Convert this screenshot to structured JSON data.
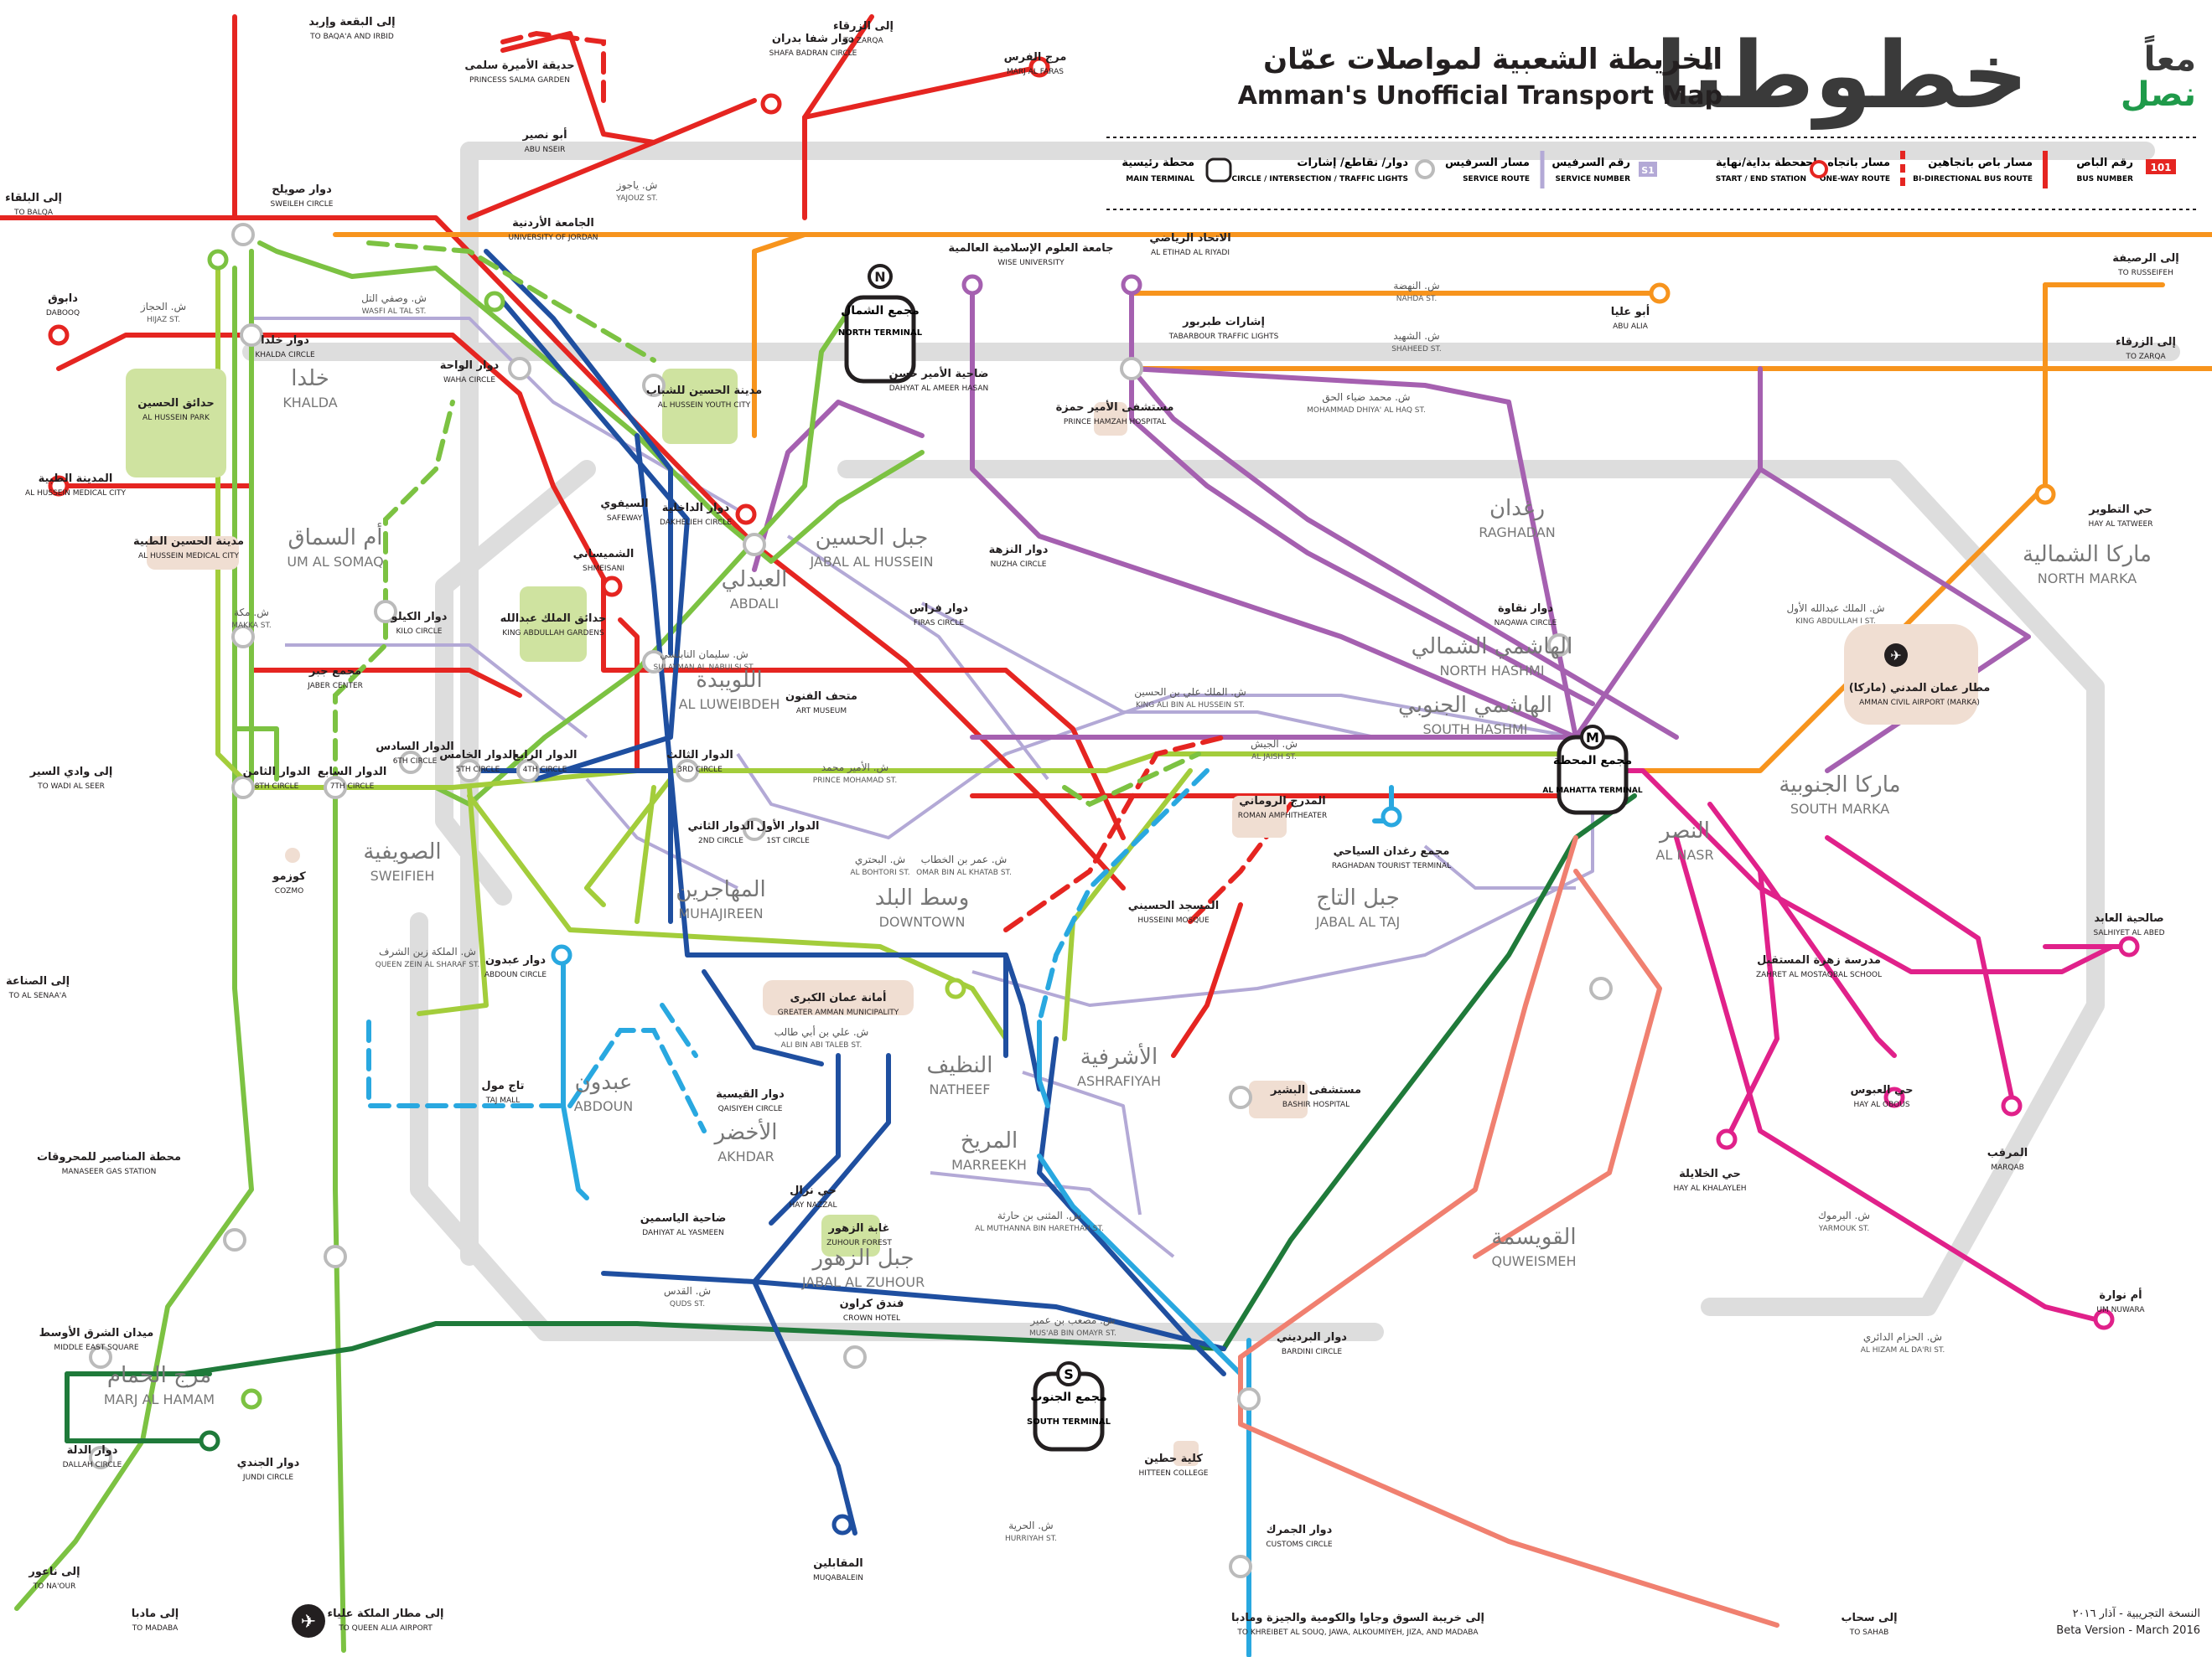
{
  "header": {
    "logo_ar_1": "معاً",
    "logo_ar_2": "نصل",
    "logo_main": "خطوطنا",
    "title_ar": "الخريطة الشعبية لمواصلات عمّان",
    "title_en": "Amman's Unofficial Transport Map"
  },
  "legend": [
    {
      "ar": "رقم الباص",
      "en": "BUS NUMBER",
      "sample": "101"
    },
    {
      "ar": "مسار باص باتجاهين",
      "en": "BI-DIRECTIONAL BUS ROUTE"
    },
    {
      "ar": "مسار باتجاه واحد",
      "en": "ONE-WAY ROUTE"
    },
    {
      "ar": "محطة بداية/نهاية",
      "en": "START / END STATION"
    },
    {
      "ar": "رقم السرفيس",
      "en": "SERVICE NUMBER",
      "sample": "S1"
    },
    {
      "ar": "مسار السرفيس",
      "en": "SERVICE ROUTE"
    },
    {
      "ar": "دوار/ تقاطع/ إشارات",
      "en": "CIRCLE / INTERSECTION / TRAFFIC LIGHTS"
    },
    {
      "ar": "محطة رئيسية",
      "en": "MAIN TERMINAL"
    }
  ],
  "colors": {
    "red": "#e52521",
    "orange": "#f7941d",
    "green": "#7cc242",
    "lime": "#a3cd3b",
    "darkgreen": "#1f7a3a",
    "blue": "#1f4fa0",
    "lightblue": "#29a8e0",
    "purple": "#a560b0",
    "magenta": "#e0218a",
    "salmon": "#f08070",
    "grey": "#dddddd",
    "lilac": "#b3a9d6"
  },
  "areas": [
    {
      "ar": "خلدا",
      "en": "KHALDA"
    },
    {
      "ar": "أم السماق",
      "en": "UM AL SOMAQ"
    },
    {
      "ar": "الصويفية",
      "en": "SWEIFIEH"
    },
    {
      "ar": "عبدون",
      "en": "ABDOUN"
    },
    {
      "ar": "مرج الحمام",
      "en": "MARJ AL HAMAM"
    },
    {
      "ar": "العبدلي",
      "en": "ABDALI"
    },
    {
      "ar": "اللويبدة",
      "en": "AL LUWEIBDEH"
    },
    {
      "ar": "المهاجرين",
      "en": "MUHAJIREEN"
    },
    {
      "ar": "وسط البلد",
      "en": "DOWNTOWN"
    },
    {
      "ar": "الأخضر",
      "en": "AKHDAR"
    },
    {
      "ar": "النظيف",
      "en": "NATHEEF"
    },
    {
      "ar": "المريخ",
      "en": "MARREEKH"
    },
    {
      "ar": "الأشرفية",
      "en": "ASHRAFIYAH"
    },
    {
      "ar": "جبل الزهور",
      "en": "JABAL AL ZUHOUR"
    },
    {
      "ar": "جبل التاج",
      "en": "JABAL AL TAJ"
    },
    {
      "ar": "رغدان",
      "en": "RAGHADAN"
    },
    {
      "ar": "الهاشمي الشمالي",
      "en": "NORTH HASHMI"
    },
    {
      "ar": "الهاشمي الجنوبي",
      "en": "SOUTH HASHMI"
    },
    {
      "ar": "النصر",
      "en": "AL NASR"
    },
    {
      "ar": "ماركا الشمالية",
      "en": "NORTH MARKA"
    },
    {
      "ar": "ماركا الجنوبية",
      "en": "SOUTH MARKA"
    },
    {
      "ar": "القويسمة",
      "en": "QUWEISMEH"
    },
    {
      "ar": "جبل الحسين",
      "en": "JABAL AL HUSSEIN"
    }
  ],
  "places": [
    {
      "ar": "إلى البقعة وإربد",
      "en": "TO BAQA'A AND IRBID"
    },
    {
      "ar": "إلى الزرقاء",
      "en": "TO ZARQA"
    },
    {
      "ar": "مرج الفرس",
      "en": "MARJ AL FARAS"
    },
    {
      "ar": "حديقة الأميرة سلمى",
      "en": "PRINCESS SALMA GARDEN"
    },
    {
      "ar": "أبو نصير",
      "en": "ABU NSEIR"
    },
    {
      "ar": "دوار شفا بدران",
      "en": "SHAFA BADRAN CIRCLE"
    },
    {
      "ar": "إلى البلقاء",
      "en": "TO BALQA"
    },
    {
      "ar": "دوار صويلح",
      "en": "SWEILEH CIRCLE"
    },
    {
      "ar": "الجامعة الأردنية",
      "en": "UNIVERSITY OF JORDAN"
    },
    {
      "ar": "جامعة العلوم الإسلامية العالمية",
      "en": "WISE UNIVERSITY"
    },
    {
      "ar": "الاتحاد الرياضي",
      "en": "AL ETIHAD AL RIYADI"
    },
    {
      "ar": "إلى الرصيفة",
      "en": "TO RUSSEIFEH"
    },
    {
      "ar": "دابوق",
      "en": "DABOOQ"
    },
    {
      "ar": "دوار خلدا",
      "en": "KHALDA CIRCLE"
    },
    {
      "ar": "أبو عليا",
      "en": "ABU ALIA"
    },
    {
      "ar": "إشارات طبربور",
      "en": "TABARBOUR TRAFFIC LIGHTS"
    },
    {
      "ar": "إلى الزرقاء",
      "en": "TO ZARQA"
    },
    {
      "ar": "حدائق الحسين",
      "en": "AL HUSSEIN PARK"
    },
    {
      "ar": "دوار الواحة",
      "en": "WAHA CIRCLE"
    },
    {
      "ar": "مدينة الحسين للشباب",
      "en": "AL HUSSEIN YOUTH CITY"
    },
    {
      "ar": "ضاحية الأمير حسن",
      "en": "DAHYAT AL AMEER HASAN"
    },
    {
      "ar": "مستشفى الأمير حمزة",
      "en": "PRINCE HAMZAH HOSPITAL"
    },
    {
      "ar": "المدينة الطبية",
      "en": "AL HUSSEIN MEDICAL CITY"
    },
    {
      "ar": "مدينة الحسين الطبية",
      "en": "AL HUSSEIN MEDICAL CITY"
    },
    {
      "ar": "السيفوي",
      "en": "SAFEWAY"
    },
    {
      "ar": "دوار الداخلية",
      "en": "DAKHELIEH CIRCLE"
    },
    {
      "ar": "دوار النزهة",
      "en": "NUZHA CIRCLE"
    },
    {
      "ar": "حي التطوير",
      "en": "HAY AL TATWEER"
    },
    {
      "ar": "دوار الكيلو",
      "en": "KILO CIRCLE"
    },
    {
      "ar": "الشميساني",
      "en": "SHMEISANI"
    },
    {
      "ar": "حدائق الملك عبدالله",
      "en": "KING ABDULLAH GARDENS"
    },
    {
      "ar": "دوار فراس",
      "en": "FIRAS CIRCLE"
    },
    {
      "ar": "دوار نقاوة",
      "en": "NAQAWA CIRCLE"
    },
    {
      "ar": "مجمع جبر",
      "en": "JABER CENTER"
    },
    {
      "ar": "متحف الفنون",
      "en": "ART MUSEUM"
    },
    {
      "ar": "مطار عمان المدني (ماركا)",
      "en": "AMMAN CIVIL AIRPORT (MARKA)"
    },
    {
      "ar": "إلى وادي السير",
      "en": "TO WADI AL SEER"
    },
    {
      "ar": "الدوار الثامن",
      "en": "8TH CIRCLE"
    },
    {
      "ar": "الدوار السابع",
      "en": "7TH CIRCLE"
    },
    {
      "ar": "الدوار السادس",
      "en": "6TH CIRCLE"
    },
    {
      "ar": "الدوار الخامس",
      "en": "5TH CIRCLE"
    },
    {
      "ar": "الدوار الرابع",
      "en": "4TH CIRCLE"
    },
    {
      "ar": "الدوار الثالث",
      "en": "3RD CIRCLE"
    },
    {
      "ar": "الدوار الثاني",
      "en": "2ND CIRCLE"
    },
    {
      "ar": "الدوار الأول",
      "en": "1ST CIRCLE"
    },
    {
      "ar": "المدرج الروماني",
      "en": "ROMAN AMPHITHEATER"
    },
    {
      "ar": "مجمع رغدان السياحي",
      "en": "RAGHADAN TOURIST TERMINAL"
    },
    {
      "ar": "كوزمو",
      "en": "COZMO"
    },
    {
      "ar": "المسجد الحسيني",
      "en": "HUSSEINI MOSQUE"
    },
    {
      "ar": "صالحية العابد",
      "en": "SALHIYET AL ABED"
    },
    {
      "ar": "إلى الصناعة",
      "en": "TO AL SENAA'A"
    },
    {
      "ar": "دوار عبدون",
      "en": "ABDOUN CIRCLE"
    },
    {
      "ar": "مدرسة زهرة المستقبل",
      "en": "ZAHRET AL MOSTAQBAL SCHOOL"
    },
    {
      "ar": "أمانة عمان الكبرى",
      "en": "GREATER AMMAN MUNICIPALITY"
    },
    {
      "ar": "تاج مول",
      "en": "TAJ MALL"
    },
    {
      "ar": "دوار القيسية",
      "en": "QAISIYEH CIRCLE"
    },
    {
      "ar": "مستشفى البشير",
      "en": "BASHIR HOSPITAL"
    },
    {
      "ar": "حي العبوس",
      "en": "HAY AL OBOUS"
    },
    {
      "ar": "المرقب",
      "en": "MARQAB"
    },
    {
      "ar": "محطة المناصير للمحروقات",
      "en": "MANASEER GAS STATION"
    },
    {
      "ar": "حي نزال",
      "en": "HAY NAZZAL"
    },
    {
      "ar": "حي الخلايلة",
      "en": "HAY AL KHALAYLEH"
    },
    {
      "ar": "ضاحية الياسمين",
      "en": "DAHIYAT AL YASMEEN"
    },
    {
      "ar": "غابة الزهور",
      "en": "ZUHOUR FOREST"
    },
    {
      "ar": "أم نوارة",
      "en": "UM NUWARA"
    },
    {
      "ar": "فندق كراون",
      "en": "CROWN HOTEL"
    },
    {
      "ar": "دوار البرديني",
      "en": "BARDINI CIRCLE"
    },
    {
      "ar": "ميدان الشرق الأوسط",
      "en": "MIDDLE EAST SQUARE"
    },
    {
      "ar": "دوار الدلة",
      "en": "DALLAH CIRCLE"
    },
    {
      "ar": "دوار الجندي",
      "en": "JUNDI CIRCLE"
    },
    {
      "ar": "كلية حطين",
      "en": "HITTEEN COLLEGE"
    },
    {
      "ar": "المقابلين",
      "en": "MUQABALEIN"
    },
    {
      "ar": "دوار الجمرك",
      "en": "CUSTOMS CIRCLE"
    },
    {
      "ar": "إلى ناعور",
      "en": "TO NA'OUR"
    },
    {
      "ar": "إلى مادبا",
      "en": "TO MADABA"
    },
    {
      "ar": "إلى مطار الملكة علياء",
      "en": "TO QUEEN ALIA AIRPORT"
    },
    {
      "ar": "إلى خريبة السوق وجاوا والكومية والجيزة ومادبا",
      "en": "TO KHREIBET AL SOUQ, JAWA, ALKOUMIYEH, JIZA, AND MADABA"
    },
    {
      "ar": "إلى سحاب",
      "en": "TO SAHAB"
    }
  ],
  "terminals": [
    {
      "ar": "مجمع الشمال",
      "en": "NORTH TERMINAL",
      "letter": "N"
    },
    {
      "ar": "مجمع المحطة",
      "en": "AL MAHATTA TERMINAL",
      "letter": "M"
    },
    {
      "ar": "مجمع الجنوب",
      "en": "SOUTH TERMINAL",
      "letter": "S"
    }
  ],
  "streets": [
    {
      "ar": "ش. ياجوز",
      "en": "YAJOUZ ST."
    },
    {
      "ar": "ش. وصفي التل",
      "en": "WASFI AL TAL ST."
    },
    {
      "ar": "ش. الحجاز",
      "en": "HIJAZ ST."
    },
    {
      "ar": "ش. النهضة",
      "en": "NAHDA ST."
    },
    {
      "ar": "ش. الشهيد",
      "en": "SHAHEED ST."
    },
    {
      "ar": "ش. محمد ضياء الحق",
      "en": "MOHAMMAD DHIYA' AL HAQ ST."
    },
    {
      "ar": "ش. مكة",
      "en": "MAKKA ST."
    },
    {
      "ar": "ش. سليمان النابلسي",
      "en": "SULAYMAN AL NABULSI ST."
    },
    {
      "ar": "ش. الملك علي بن الحسين",
      "en": "KING ALI BIN AL HUSSEIN ST."
    },
    {
      "ar": "ش. الجيش",
      "en": "AL JAISH ST."
    },
    {
      "ar": "ش. الأمير محمد",
      "en": "PRINCE MOHAMAD ST."
    },
    {
      "ar": "ش. البحتري",
      "en": "AL BOHTORI ST."
    },
    {
      "ar": "ش. عمر بن الخطاب",
      "en": "OMAR BIN AL KHATAB ST."
    },
    {
      "ar": "ش. الملكة زين الشرف",
      "en": "QUEEN ZEIN AL SHARAF ST."
    },
    {
      "ar": "ش. علي بن أبي طالب",
      "en": "ALI BIN ABI TALEB ST."
    },
    {
      "ar": "ش. المثنى بن حارثة",
      "en": "AL MUTHANNA BIN HARETHAH ST."
    },
    {
      "ar": "ش. القدس",
      "en": "QUDS ST."
    },
    {
      "ar": "ش. مصعب بن عمير",
      "en": "MUS'AB BIN OMAYR ST."
    },
    {
      "ar": "ش. اليرموك",
      "en": "YARMOUK ST."
    },
    {
      "ar": "ش. الحرية",
      "en": "HURRIYAH ST."
    },
    {
      "ar": "ش. الملك عبدالله الأول",
      "en": "KING ABDULLAH I ST."
    },
    {
      "ar": "ش. الحزام الدائري",
      "en": "AL HIZAM AL DA'RI ST."
    }
  ],
  "footer": {
    "version_ar": "النسخة التجريبية - آذار ٢٠١٦",
    "version_en": "Beta Version - March 2016"
  }
}
